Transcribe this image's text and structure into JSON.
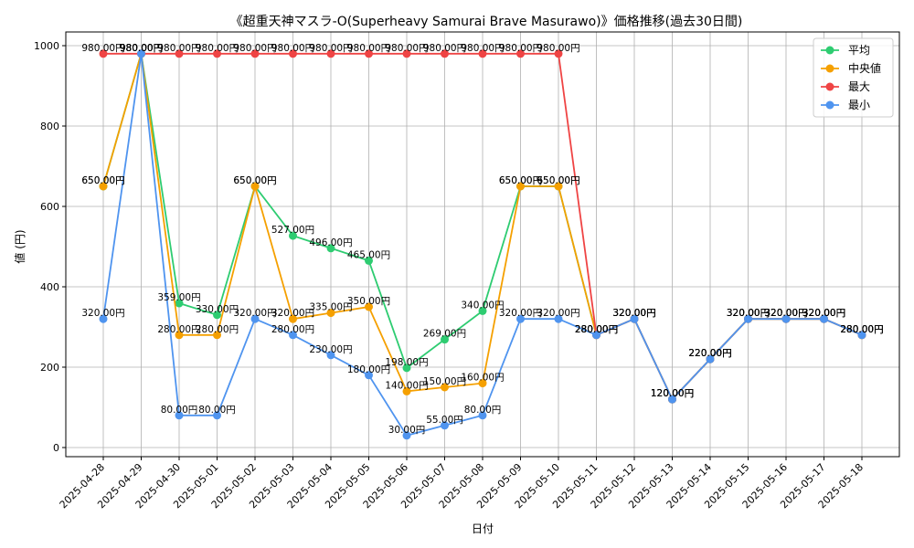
{
  "chart_data": {
    "type": "line",
    "title": "《超重天神マスラ-O(Superheavy Samurai Brave Masurawo)》価格推移(過去30日間)",
    "xlabel": "日付",
    "ylabel": "値 (円)",
    "ylim": [
      0,
      1000
    ],
    "yticks": [
      0,
      200,
      400,
      600,
      800,
      1000
    ],
    "grid": true,
    "legend_position": "top-right",
    "categories": [
      "2025-04-28",
      "2025-04-29",
      "2025-04-30",
      "2025-05-01",
      "2025-05-02",
      "2025-05-03",
      "2025-05-04",
      "2025-05-05",
      "2025-05-06",
      "2025-05-07",
      "2025-05-08",
      "2025-05-09",
      "2025-05-10",
      "2025-05-11",
      "2025-05-12",
      "2025-05-13",
      "2025-05-14",
      "2025-05-15",
      "2025-05-16",
      "2025-05-17",
      "2025-05-18"
    ],
    "series": [
      {
        "name": "平均",
        "color": "#2ecc71",
        "values": [
          650,
          980,
          359,
          330,
          650,
          527,
          496,
          465,
          198,
          269,
          340,
          650,
          650,
          280,
          320,
          120,
          220,
          320,
          320,
          320,
          280
        ],
        "labels": [
          "650.00円",
          "980.00円",
          "359.00円",
          "330.00円",
          "650.00円",
          "527.00円",
          "496.00円",
          "465.00円",
          "198.00円",
          "269.00円",
          "340.00円",
          "650.00円",
          "650.00円",
          "280.00円",
          "320.00円",
          "120.00円",
          "220.00円",
          "320.00円",
          "320.00円",
          "320.00円",
          "280.00円"
        ]
      },
      {
        "name": "中央値",
        "color": "#f5a000",
        "values": [
          650,
          980,
          280,
          280,
          650,
          320,
          335,
          350,
          140,
          150,
          160,
          650,
          650,
          280,
          320,
          120,
          220,
          320,
          320,
          320,
          280
        ],
        "labels": [
          "650.00円",
          "980.00円",
          "280.00円",
          "280.00円",
          "650.00円",
          "320.00円",
          "335.00円",
          "350.00円",
          "140.00円",
          "150.00円",
          "160.00円",
          "650.00円",
          "650.00円",
          "280.00円",
          "320.00円",
          "120.00円",
          "220.00円",
          "320.00円",
          "320.00円",
          "320.00円",
          "280.00円"
        ]
      },
      {
        "name": "最大",
        "color": "#ef4444",
        "values": [
          980,
          980,
          980,
          980,
          980,
          980,
          980,
          980,
          980,
          980,
          980,
          980,
          980,
          280,
          320,
          120,
          220,
          320,
          320,
          320,
          280
        ],
        "labels": [
          "980.00円",
          "980.00円",
          "980.00円",
          "980.00円",
          "980.00円",
          "980.00円",
          "980.00円",
          "980.00円",
          "980.00円",
          "980.00円",
          "980.00円",
          "980.00円",
          "980.00円",
          "280.00円",
          "320.00円",
          "120.00円",
          "220.00円",
          "320.00円",
          "320.00円",
          "320.00円",
          "280.00円"
        ]
      },
      {
        "name": "最小",
        "color": "#4f94ef",
        "values": [
          320,
          980,
          80,
          80,
          320,
          280,
          230,
          180,
          30,
          55,
          80,
          320,
          320,
          280,
          320,
          120,
          220,
          320,
          320,
          320,
          280
        ],
        "labels": [
          "320.00円",
          "980.00円",
          "80.00円",
          "80.00円",
          "320.00円",
          "280.00円",
          "230.00円",
          "180.00円",
          "30.00円",
          "55.00円",
          "80.00円",
          "320.00円",
          "320.00円",
          "280.00円",
          "320.00円",
          "120.00円",
          "220.00円",
          "320.00円",
          "320.00円",
          "320.00円",
          "280.00円"
        ]
      }
    ]
  }
}
